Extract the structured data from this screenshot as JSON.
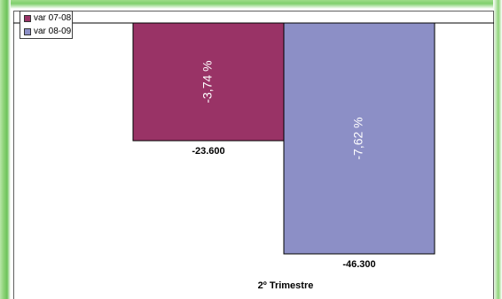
{
  "chart_data": {
    "type": "bar",
    "categories": [
      "2º Trimestre"
    ],
    "xlabel": "2º Trimestre",
    "ylim": [
      -50000,
      0
    ],
    "legend_position": "top-left",
    "grid": false,
    "series": [
      {
        "name": "var 07-08",
        "values": [
          -23600
        ],
        "value_label": "-23.600",
        "bar_label": "-3,74 %",
        "color": "#993366"
      },
      {
        "name": "var 08-09",
        "values": [
          -46300
        ],
        "value_label": "-46.300",
        "bar_label": "-7,62 %",
        "color": "#8c8fc6"
      }
    ]
  }
}
